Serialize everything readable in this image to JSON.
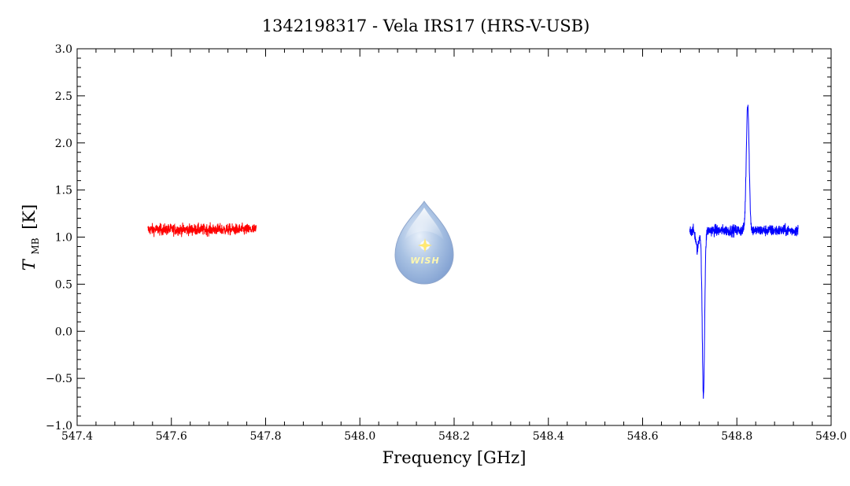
{
  "chart_data": {
    "type": "line",
    "title": "1342198317 - Vela IRS17 (HRS-V-USB)",
    "xlabel": "Frequency [GHz]",
    "ylabel_symbol": "T",
    "ylabel_subscript": "MB",
    "ylabel_unit": "[K]",
    "xlim": [
      547.4,
      549.0
    ],
    "ylim": [
      -1.0,
      3.0
    ],
    "x_ticks": [
      "547.4",
      "547.6",
      "547.8",
      "548.0",
      "548.2",
      "548.4",
      "548.6",
      "548.8",
      "549.0"
    ],
    "y_ticks": [
      "−1.0",
      "−0.5",
      "0.0",
      "0.5",
      "1.0",
      "1.5",
      "2.0",
      "2.5",
      "3.0"
    ],
    "grid": false,
    "logo_text": "WISH",
    "series": [
      {
        "color": "#ff0000",
        "x_range": [
          547.55,
          547.78
        ],
        "baseline": 1.08,
        "noise": 0.06,
        "features": []
      },
      {
        "color": "#0000ff",
        "x_range": [
          548.7,
          548.93
        ],
        "baseline": 1.07,
        "noise": 0.06,
        "features": [
          {
            "center": 548.716,
            "depth": -0.2,
            "width": 0.003
          },
          {
            "center": 548.729,
            "depth": -1.75,
            "width": 0.0025
          },
          {
            "center": 548.823,
            "depth": 1.35,
            "width": 0.003
          }
        ]
      }
    ]
  }
}
